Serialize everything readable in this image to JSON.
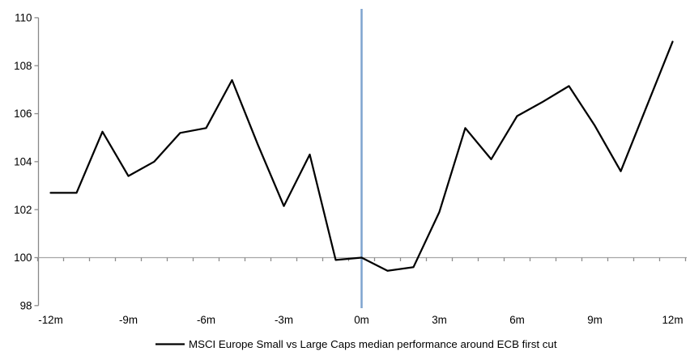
{
  "chart_data": {
    "type": "line",
    "title": "",
    "xlabel": "",
    "ylabel": "",
    "x": [
      -12,
      -11,
      -10,
      -9,
      -8,
      -7,
      -6,
      -5,
      -4,
      -3,
      -2,
      -1,
      0,
      1,
      2,
      3,
      4,
      5,
      6,
      7,
      8,
      9,
      10,
      11,
      12
    ],
    "series": [
      {
        "name": "MSCI Europe Small vs Large Caps median performance around ECB first cut",
        "values": [
          102.7,
          102.7,
          105.25,
          103.4,
          104.0,
          105.2,
          105.4,
          107.4,
          104.7,
          102.15,
          104.3,
          99.9,
          100.0,
          99.45,
          99.6,
          101.9,
          105.4,
          104.1,
          105.9,
          106.5,
          107.15,
          105.5,
          103.6,
          106.3,
          109.0
        ]
      }
    ],
    "xlim": [
      -12.5,
      12.5
    ],
    "ylim": [
      98,
      110
    ],
    "y_ticks": [
      98,
      100,
      102,
      104,
      106,
      108,
      110
    ],
    "y_tick_labels": [
      "98",
      "100",
      "102",
      "104",
      "106",
      "108",
      "110"
    ],
    "x_tick_values": [
      -12,
      -9,
      -6,
      -3,
      0,
      3,
      6,
      9,
      12
    ],
    "x_tick_labels": [
      "-12m",
      "-9m",
      "-6m",
      "-3m",
      "0m",
      "3m",
      "6m",
      "9m",
      "12m"
    ],
    "x_minor_tick_step": 1,
    "baseline_value": 100,
    "event_line_x": 0,
    "grid": false,
    "legend_position": "bottom-center",
    "colors": {
      "series_line": "#000000",
      "event_line": "#7EA4CF",
      "baseline_line": "#A6A6A6",
      "axis_line": "#898989",
      "tick_mark": "#8C8C8C",
      "label_text": "#000000"
    }
  },
  "legend": {
    "label": "MSCI Europe Small vs Large Caps median performance around ECB first cut"
  }
}
